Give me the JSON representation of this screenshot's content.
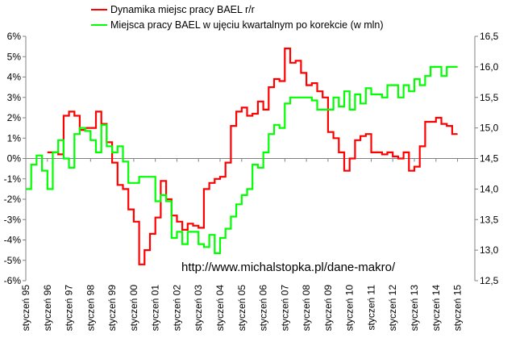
{
  "chart_data": {
    "type": "line",
    "title": "",
    "url_annotation": "http://www.michalstopka.pl/dane-makro/",
    "x_tick_labels": [
      "styczeń 95",
      "styczeń 96",
      "styczeń 97",
      "styczeń 98",
      "styczeń 99",
      "styczeń 00",
      "styczeń 01",
      "styczeń 02",
      "styczeń 03",
      "styczeń 04",
      "styczeń 05",
      "styczeń 06",
      "styczeń 07",
      "styczeń 08",
      "styczeń 09",
      "styczeń 10",
      "styczeń 11",
      "styczeń 12",
      "styczeń 13",
      "styczeń 14",
      "styczeń 15"
    ],
    "y_left": {
      "min": -6,
      "max": 6,
      "step": 1,
      "labels": [
        "-6%",
        "-5%",
        "-4%",
        "-3%",
        "-2%",
        "-1%",
        "0%",
        "1%",
        "2%",
        "3%",
        "4%",
        "5%",
        "6%"
      ]
    },
    "y_right": {
      "min": 12.5,
      "max": 16.5,
      "step": 0.5,
      "labels": [
        "12,5",
        "13,0",
        "13,5",
        "14,0",
        "14,5",
        "15,0",
        "15,5",
        "16,0",
        "16,5"
      ]
    },
    "legend_position": "top",
    "grid": false,
    "series": [
      {
        "name": "Dynamika miejsc pracy BAEL r/r",
        "color": "#ff0000",
        "axis": "left",
        "points": [
          [
            1996.0,
            0.3
          ],
          [
            1996.5,
            0.2
          ],
          [
            1996.75,
            2.1
          ],
          [
            1997.0,
            2.3
          ],
          [
            1997.25,
            2.1
          ],
          [
            1997.5,
            1.4
          ],
          [
            1997.75,
            1.5
          ],
          [
            1998.0,
            1.5
          ],
          [
            1998.25,
            2.3
          ],
          [
            1998.5,
            1.7
          ],
          [
            1998.75,
            0.8
          ],
          [
            1999.0,
            -0.2
          ],
          [
            1999.25,
            -1.3
          ],
          [
            1999.5,
            -1.5
          ],
          [
            1999.75,
            -2.5
          ],
          [
            2000.0,
            -3.1
          ],
          [
            2000.25,
            -5.2
          ],
          [
            2000.5,
            -4.5
          ],
          [
            2000.75,
            -3.7
          ],
          [
            2001.0,
            -2.9
          ],
          [
            2001.25,
            -1.1
          ],
          [
            2001.5,
            -2.0
          ],
          [
            2001.75,
            -2.8
          ],
          [
            2002.0,
            -3.1
          ],
          [
            2002.25,
            -3.5
          ],
          [
            2002.5,
            -3.2
          ],
          [
            2002.75,
            -3.3
          ],
          [
            2003.0,
            -3.4
          ],
          [
            2003.25,
            -1.5
          ],
          [
            2003.5,
            -1.2
          ],
          [
            2003.75,
            -1.0
          ],
          [
            2004.0,
            -0.9
          ],
          [
            2004.25,
            -0.2
          ],
          [
            2004.5,
            1.6
          ],
          [
            2004.75,
            2.3
          ],
          [
            2005.0,
            2.5
          ],
          [
            2005.25,
            2.1
          ],
          [
            2005.5,
            2.2
          ],
          [
            2005.75,
            2.8
          ],
          [
            2006.0,
            2.4
          ],
          [
            2006.25,
            3.5
          ],
          [
            2006.5,
            3.9
          ],
          [
            2006.75,
            3.8
          ],
          [
            2007.0,
            5.4
          ],
          [
            2007.25,
            4.7
          ],
          [
            2007.5,
            4.8
          ],
          [
            2007.75,
            4.2
          ],
          [
            2008.0,
            3.6
          ],
          [
            2008.25,
            3.7
          ],
          [
            2008.5,
            3.3
          ],
          [
            2008.75,
            3.0
          ],
          [
            2009.0,
            1.3
          ],
          [
            2009.25,
            1.0
          ],
          [
            2009.5,
            0.3
          ],
          [
            2009.75,
            -0.6
          ],
          [
            2010.0,
            0.0
          ],
          [
            2010.25,
            0.9
          ],
          [
            2010.5,
            1.1
          ],
          [
            2010.75,
            1.2
          ],
          [
            2011.0,
            0.3
          ],
          [
            2011.25,
            0.3
          ],
          [
            2011.5,
            0.2
          ],
          [
            2011.75,
            0.3
          ],
          [
            2012.0,
            0.1
          ],
          [
            2012.25,
            0.0
          ],
          [
            2012.5,
            0.3
          ],
          [
            2012.75,
            -0.6
          ],
          [
            2013.0,
            -0.4
          ],
          [
            2013.25,
            0.6
          ],
          [
            2013.5,
            1.8
          ],
          [
            2013.75,
            1.8
          ],
          [
            2014.0,
            2.0
          ],
          [
            2014.25,
            1.7
          ],
          [
            2014.5,
            1.6
          ],
          [
            2014.75,
            1.2
          ]
        ]
      },
      {
        "name": "Miejsca pracy BAEL  w ujęciu kwartalnym po korekcie (w mln)",
        "color": "#00ff00",
        "axis": "right",
        "points": [
          [
            1995.0,
            14.0
          ],
          [
            1995.25,
            14.4
          ],
          [
            1995.5,
            14.55
          ],
          [
            1995.75,
            14.3
          ],
          [
            1996.0,
            14.0
          ],
          [
            1996.25,
            14.6
          ],
          [
            1996.5,
            14.8
          ],
          [
            1996.75,
            14.5
          ],
          [
            1997.0,
            14.35
          ],
          [
            1997.25,
            14.9
          ],
          [
            1997.5,
            15.0
          ],
          [
            1997.75,
            14.95
          ],
          [
            1998.0,
            14.8
          ],
          [
            1998.25,
            14.6
          ],
          [
            1998.5,
            15.05
          ],
          [
            1998.75,
            14.7
          ],
          [
            1999.0,
            14.6
          ],
          [
            1999.25,
            14.7
          ],
          [
            1999.5,
            14.45
          ],
          [
            1999.75,
            14.1
          ],
          [
            2000.0,
            14.1
          ],
          [
            2000.25,
            14.2
          ],
          [
            2000.5,
            14.2
          ],
          [
            2000.75,
            14.2
          ],
          [
            2001.0,
            13.8
          ],
          [
            2001.25,
            13.9
          ],
          [
            2001.5,
            13.8
          ],
          [
            2001.75,
            13.2
          ],
          [
            2002.0,
            13.3
          ],
          [
            2002.25,
            13.1
          ],
          [
            2002.5,
            13.3
          ],
          [
            2002.75,
            13.3
          ],
          [
            2003.0,
            13.1
          ],
          [
            2003.25,
            13.05
          ],
          [
            2003.5,
            13.25
          ],
          [
            2003.75,
            12.95
          ],
          [
            2004.0,
            13.2
          ],
          [
            2004.25,
            13.35
          ],
          [
            2004.5,
            13.55
          ],
          [
            2004.75,
            13.75
          ],
          [
            2005.0,
            13.9
          ],
          [
            2005.25,
            14.0
          ],
          [
            2005.5,
            14.4
          ],
          [
            2005.75,
            14.35
          ],
          [
            2006.0,
            14.6
          ],
          [
            2006.25,
            14.9
          ],
          [
            2006.5,
            15.05
          ],
          [
            2006.75,
            15.0
          ],
          [
            2007.0,
            15.4
          ],
          [
            2007.25,
            15.5
          ],
          [
            2007.5,
            15.5
          ],
          [
            2007.75,
            15.5
          ],
          [
            2008.0,
            15.5
          ],
          [
            2008.25,
            15.45
          ],
          [
            2008.5,
            15.3
          ],
          [
            2008.75,
            15.3
          ],
          [
            2009.0,
            15.3
          ],
          [
            2009.25,
            15.5
          ],
          [
            2009.5,
            15.35
          ],
          [
            2009.75,
            15.6
          ],
          [
            2010.0,
            15.3
          ],
          [
            2010.25,
            15.55
          ],
          [
            2010.5,
            15.4
          ],
          [
            2010.75,
            15.65
          ],
          [
            2011.0,
            15.55
          ],
          [
            2011.25,
            15.55
          ],
          [
            2011.5,
            15.5
          ],
          [
            2011.75,
            15.7
          ],
          [
            2012.0,
            15.7
          ],
          [
            2012.25,
            15.5
          ],
          [
            2012.5,
            15.7
          ],
          [
            2012.75,
            15.6
          ],
          [
            2013.0,
            15.8
          ],
          [
            2013.25,
            15.7
          ],
          [
            2013.5,
            15.85
          ],
          [
            2013.75,
            16.0
          ],
          [
            2014.0,
            16.0
          ],
          [
            2014.25,
            15.85
          ],
          [
            2014.5,
            16.0
          ],
          [
            2014.75,
            16.0
          ]
        ]
      }
    ]
  }
}
